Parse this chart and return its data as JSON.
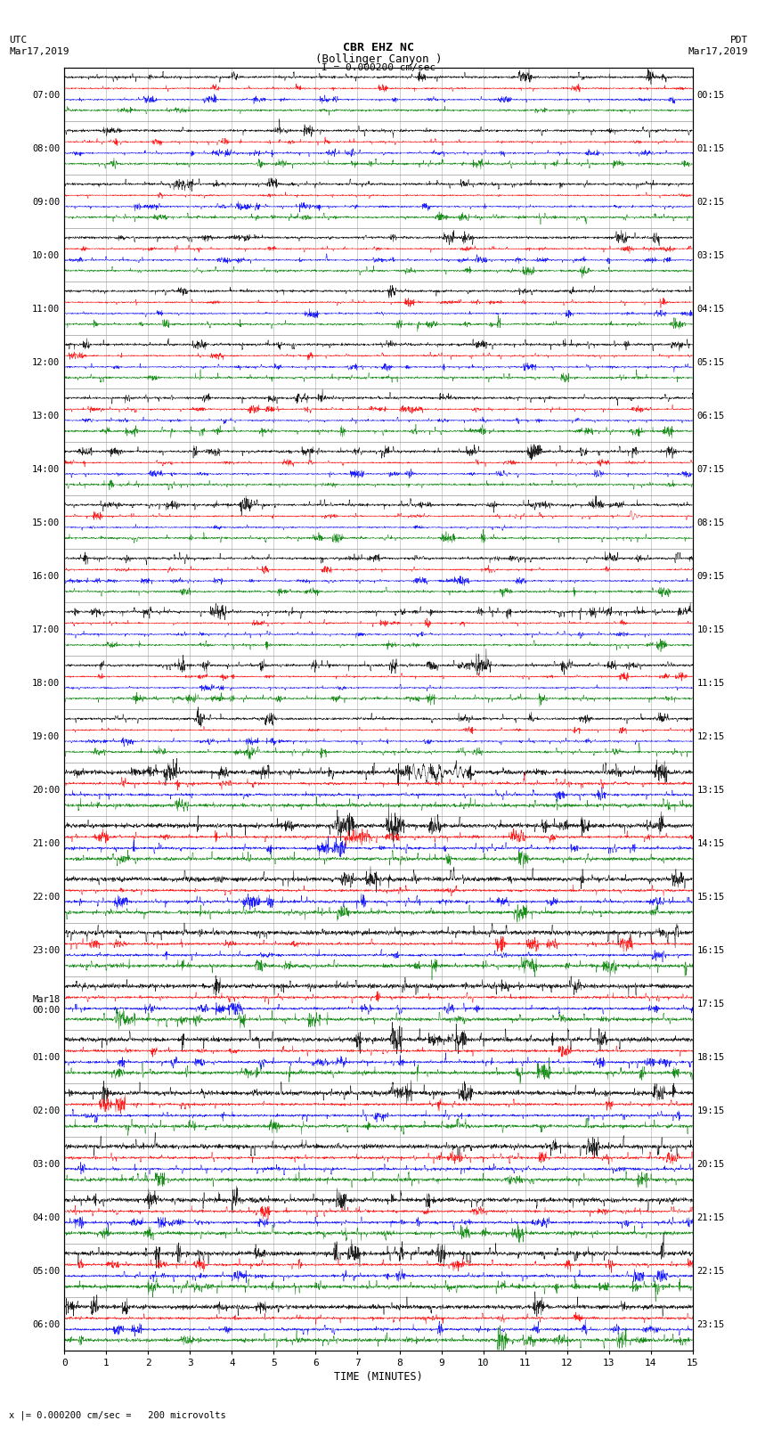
{
  "title_line1": "CBR EHZ NC",
  "title_line2": "(Bollinger Canyon )",
  "scale_label": "I = 0.000200 cm/sec",
  "left_header_line1": "UTC",
  "left_header_line2": "Mar17,2019",
  "right_header_line1": "PDT",
  "right_header_line2": "Mar17,2019",
  "bottom_label": "TIME (MINUTES)",
  "footer_label": "x |= 0.000200 cm/sec =   200 microvolts",
  "utc_times": [
    "07:00",
    "08:00",
    "09:00",
    "10:00",
    "11:00",
    "12:00",
    "13:00",
    "14:00",
    "15:00",
    "16:00",
    "17:00",
    "18:00",
    "19:00",
    "20:00",
    "21:00",
    "22:00",
    "23:00",
    "Mar18",
    "01:00",
    "02:00",
    "03:00",
    "04:00",
    "05:00",
    "06:00"
  ],
  "utc_times_sub": [
    "",
    "",
    "",
    "",
    "",
    "",
    "",
    "",
    "",
    "",
    "",
    "",
    "",
    "",
    "",
    "",
    "",
    "00:00",
    "",
    "",
    "",
    "",
    "",
    ""
  ],
  "pdt_times": [
    "00:15",
    "01:15",
    "02:15",
    "03:15",
    "04:15",
    "05:15",
    "06:15",
    "07:15",
    "08:15",
    "09:15",
    "10:15",
    "11:15",
    "12:15",
    "13:15",
    "14:15",
    "15:15",
    "16:15",
    "17:15",
    "18:15",
    "19:15",
    "20:15",
    "21:15",
    "22:15",
    "23:15"
  ],
  "n_rows": 24,
  "n_traces_per_row": 4,
  "trace_colors": [
    "black",
    "red",
    "blue",
    "green"
  ],
  "bg_color": "white",
  "figsize": [
    8.5,
    16.13
  ],
  "dpi": 100,
  "xlim": [
    0,
    15
  ],
  "xticks": [
    0,
    1,
    2,
    3,
    4,
    5,
    6,
    7,
    8,
    9,
    10,
    11,
    12,
    13,
    14,
    15
  ],
  "seismic_event_row": 13,
  "seismic_event_minute": 8.3,
  "seismic_event_duration": 1.5,
  "red_spike_row": 8,
  "red_spike_minute": 13.5,
  "high_noise_rows": [
    13,
    14,
    15,
    16,
    17,
    18,
    19,
    20,
    21,
    22,
    23
  ]
}
